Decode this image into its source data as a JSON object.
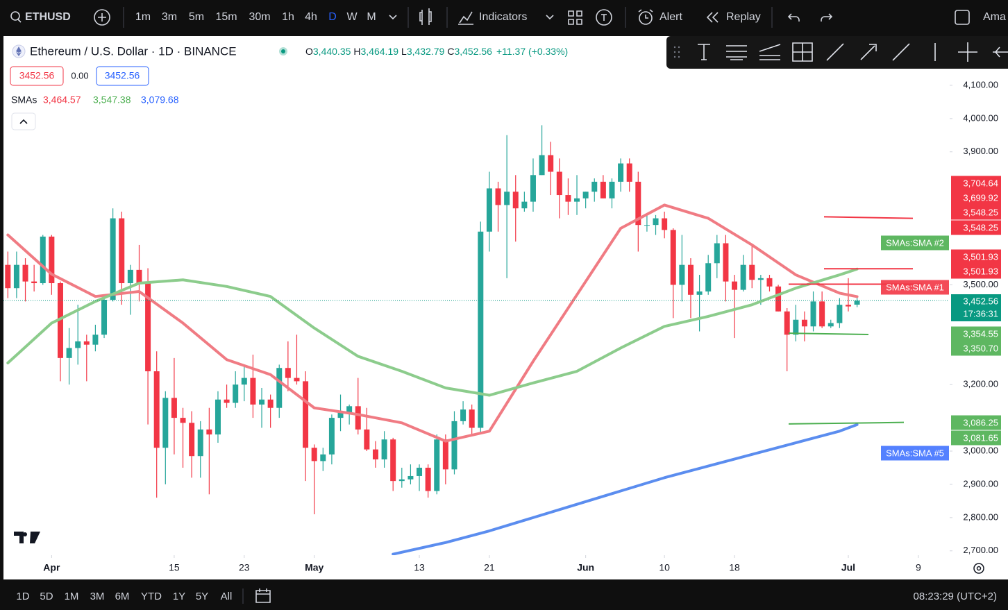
{
  "toolbar": {
    "symbol": "ETHUSD",
    "intervals": [
      "1m",
      "3m",
      "5m",
      "15m",
      "30m",
      "1h",
      "4h",
      "D",
      "W",
      "M"
    ],
    "active_interval": 7,
    "indicators": "Indicators",
    "alert": "Alert",
    "replay": "Replay",
    "account": "Ama"
  },
  "legend": {
    "title": "Ethereum / U.S. Dollar · 1D · BINANCE",
    "ohlc": [
      {
        "key": "O",
        "value": "3,440.35"
      },
      {
        "key": "H",
        "value": "3,464.19"
      },
      {
        "key": "L",
        "value": "3,432.79"
      },
      {
        "key": "C",
        "value": "3,452.56"
      }
    ],
    "change": "+11.37 (+0.33%)",
    "bid": "3452.56",
    "spread": "0.00",
    "ask": "3452.56",
    "sma_label": "SMAs",
    "sma_values": [
      "3,464.57",
      "3,547.38",
      "3,079.68"
    ]
  },
  "chart_data": {
    "type": "candlestick",
    "up_color": "#26a69a",
    "down_color": "#f23645",
    "xlim": [
      -0.5,
      107.5
    ],
    "xticks": [
      {
        "value": 5,
        "label": "Apr"
      },
      {
        "value": 19,
        "label": "15"
      },
      {
        "value": 27,
        "label": "23"
      },
      {
        "value": 35,
        "label": "May"
      },
      {
        "value": 47,
        "label": "13"
      },
      {
        "value": 55,
        "label": "21"
      },
      {
        "value": 66,
        "label": "Jun"
      },
      {
        "value": 75,
        "label": "10"
      },
      {
        "value": 83,
        "label": "18"
      },
      {
        "value": 96,
        "label": "Jul"
      },
      {
        "value": 104,
        "label": "9"
      }
    ],
    "ylim": [
      2687,
      4248
    ],
    "yticks": [
      {
        "value": 4100,
        "label": "4,100.00"
      },
      {
        "value": 4000,
        "label": "4,000.00"
      },
      {
        "value": 3900,
        "label": "3,900.00"
      },
      {
        "value": 3500,
        "label": "3,500.00"
      },
      {
        "value": 3200,
        "label": "3,200.00"
      },
      {
        "value": 3000,
        "label": "3,000.00"
      },
      {
        "value": 2900,
        "label": "2,900.00"
      },
      {
        "value": 2800,
        "label": "2,800.00"
      },
      {
        "value": 2700,
        "label": "2,700.00"
      }
    ],
    "candles": [
      [
        3560,
        3600,
        3460,
        3490
      ],
      [
        3490,
        3600,
        3460,
        3560
      ],
      [
        3560,
        3580,
        3450,
        3510
      ],
      [
        3510,
        3560,
        3480,
        3505
      ],
      [
        3505,
        3650,
        3500,
        3645
      ],
      [
        3645,
        3650,
        3470,
        3505
      ],
      [
        3505,
        3510,
        3210,
        3280
      ],
      [
        3280,
        3370,
        3200,
        3310
      ],
      [
        3310,
        3440,
        3260,
        3330
      ],
      [
        3330,
        3350,
        3210,
        3320
      ],
      [
        3320,
        3380,
        3300,
        3350
      ],
      [
        3350,
        3460,
        3340,
        3455
      ],
      [
        3455,
        3730,
        3450,
        3700
      ],
      [
        3700,
        3720,
        3440,
        3505
      ],
      [
        3505,
        3560,
        3410,
        3545
      ],
      [
        3545,
        3620,
        3450,
        3505
      ],
      [
        3505,
        3550,
        3080,
        3240
      ],
      [
        3240,
        3300,
        2860,
        3010
      ],
      [
        3010,
        3180,
        2900,
        3160
      ],
      [
        3160,
        3280,
        2990,
        3100
      ],
      [
        3100,
        3130,
        2950,
        3085
      ],
      [
        3085,
        3120,
        2920,
        2985
      ],
      [
        2985,
        3090,
        2920,
        3065
      ],
      [
        3065,
        3130,
        2870,
        3050
      ],
      [
        3050,
        3180,
        3025,
        3155
      ],
      [
        3155,
        3200,
        3130,
        3145
      ],
      [
        3145,
        3240,
        3130,
        3200
      ],
      [
        3200,
        3260,
        3150,
        3220
      ],
      [
        3220,
        3290,
        3100,
        3140
      ],
      [
        3140,
        3190,
        3070,
        3155
      ],
      [
        3155,
        3170,
        3070,
        3130
      ],
      [
        3130,
        3260,
        3100,
        3250
      ],
      [
        3250,
        3330,
        3180,
        3220
      ],
      [
        3220,
        3350,
        3200,
        3210
      ],
      [
        3210,
        3240,
        2910,
        3010
      ],
      [
        3010,
        3020,
        2810,
        2970
      ],
      [
        2970,
        3010,
        2940,
        2990
      ],
      [
        2990,
        3110,
        2960,
        3100
      ],
      [
        3100,
        3170,
        3060,
        3115
      ],
      [
        3115,
        3140,
        3080,
        3135
      ],
      [
        3135,
        3220,
        3050,
        3065
      ],
      [
        3065,
        3130,
        3000,
        3005
      ],
      [
        3005,
        3030,
        2950,
        2975
      ],
      [
        2975,
        3060,
        2950,
        3035
      ],
      [
        3035,
        3040,
        2880,
        2910
      ],
      [
        2910,
        2950,
        2890,
        2915
      ],
      [
        2915,
        2960,
        2900,
        2925
      ],
      [
        2925,
        2960,
        2880,
        2950
      ],
      [
        2950,
        2960,
        2860,
        2880
      ],
      [
        2880,
        3050,
        2870,
        3035
      ],
      [
        3035,
        3050,
        2900,
        2945
      ],
      [
        2945,
        3120,
        2930,
        3090
      ],
      [
        3090,
        3150,
        3080,
        3125
      ],
      [
        3125,
        3140,
        3050,
        3070
      ],
      [
        3070,
        3690,
        3050,
        3660
      ],
      [
        3660,
        3840,
        3600,
        3790
      ],
      [
        3790,
        3810,
        3660,
        3740
      ],
      [
        3740,
        3950,
        3520,
        3780
      ],
      [
        3780,
        3830,
        3630,
        3730
      ],
      [
        3730,
        3780,
        3720,
        3750
      ],
      [
        3750,
        3880,
        3720,
        3830
      ],
      [
        3830,
        3980,
        3830,
        3890
      ],
      [
        3890,
        3930,
        3770,
        3840
      ],
      [
        3840,
        3880,
        3700,
        3770
      ],
      [
        3770,
        3820,
        3710,
        3750
      ],
      [
        3750,
        3830,
        3710,
        3760
      ],
      [
        3760,
        3780,
        3730,
        3780
      ],
      [
        3780,
        3820,
        3750,
        3810
      ],
      [
        3810,
        3830,
        3760,
        3760
      ],
      [
        3760,
        3820,
        3730,
        3810
      ],
      [
        3810,
        3880,
        3780,
        3865
      ],
      [
        3865,
        3880,
        3780,
        3810
      ],
      [
        3810,
        3840,
        3600,
        3680
      ],
      [
        3680,
        3710,
        3660,
        3680
      ],
      [
        3680,
        3710,
        3650,
        3700
      ],
      [
        3700,
        3720,
        3640,
        3665
      ],
      [
        3665,
        3670,
        3400,
        3500
      ],
      [
        3500,
        3650,
        3450,
        3560
      ],
      [
        3560,
        3580,
        3400,
        3470
      ],
      [
        3470,
        3530,
        3360,
        3480
      ],
      [
        3480,
        3590,
        3470,
        3565
      ],
      [
        3565,
        3650,
        3520,
        3625
      ],
      [
        3625,
        3650,
        3450,
        3510
      ],
      [
        3510,
        3530,
        3340,
        3485
      ],
      [
        3485,
        3590,
        3480,
        3560
      ],
      [
        3560,
        3620,
        3490,
        3515
      ],
      [
        3515,
        3530,
        3440,
        3520
      ],
      [
        3520,
        3530,
        3480,
        3495
      ],
      [
        3495,
        3500,
        3420,
        3420
      ],
      [
        3420,
        3430,
        3240,
        3350
      ],
      [
        3350,
        3440,
        3330,
        3395
      ],
      [
        3395,
        3420,
        3330,
        3375
      ],
      [
        3375,
        3480,
        3360,
        3450
      ],
      [
        3450,
        3480,
        3370,
        3375
      ],
      [
        3375,
        3395,
        3370,
        3385
      ],
      [
        3385,
        3460,
        3370,
        3440
      ],
      [
        3440,
        3520,
        3420,
        3435
      ],
      [
        3440.35,
        3464.19,
        3432.79,
        3452.56
      ]
    ],
    "series": [
      {
        "name": "SMAs:SMA #1",
        "color": "#f07b83",
        "x": [
          0,
          5,
          10,
          15,
          20,
          25,
          30,
          35,
          40,
          45,
          50,
          55,
          60,
          65,
          70,
          75,
          80,
          85,
          90,
          95,
          97
        ],
        "values": [
          3650,
          3532,
          3465,
          3480,
          3385,
          3275,
          3230,
          3130,
          3110,
          3085,
          3030,
          3060,
          3270,
          3470,
          3670,
          3740,
          3700,
          3620,
          3530,
          3475,
          3464.57
        ]
      },
      {
        "name": "SMAs:SMA #2",
        "color": "#8ccc8c",
        "x": [
          0,
          5,
          10,
          15,
          20,
          25,
          30,
          35,
          40,
          45,
          50,
          55,
          60,
          65,
          70,
          75,
          80,
          85,
          90,
          95,
          97
        ],
        "values": [
          3265,
          3385,
          3450,
          3505,
          3515,
          3495,
          3465,
          3370,
          3285,
          3240,
          3190,
          3168,
          3205,
          3240,
          3310,
          3375,
          3405,
          3440,
          3490,
          3530,
          3547.38
        ]
      },
      {
        "name": "SMAs:SMA #5",
        "color": "#5b8def",
        "x": [
          44,
          50,
          55,
          60,
          65,
          70,
          75,
          80,
          85,
          90,
          95,
          97
        ],
        "values": [
          2690,
          2725,
          2760,
          2800,
          2840,
          2880,
          2920,
          2955,
          2990,
          3025,
          3060,
          3079.68
        ]
      }
    ],
    "drawings": [
      {
        "color": "#f23645",
        "start": 3704.64,
        "end": 3699.92,
        "start_label": "3,704.64",
        "end_label": "3,699.92"
      },
      {
        "color": "#f23645",
        "start": 3548.25,
        "end": 3548.25,
        "start_label": "3,548.25",
        "end_label": "3,548.25"
      },
      {
        "color": "#f23645",
        "start": 3501.93,
        "end": 3501.93,
        "start_label": "3,501.93",
        "end_label": "3,501.93"
      },
      {
        "color": "#4caf50",
        "start": 3354.55,
        "end": 3350.7,
        "start_label": "3,354.55",
        "end_label": "3,350.70"
      },
      {
        "color": "#4caf50",
        "start": 3081.65,
        "end": 3086.25,
        "start_label": "3,081.65",
        "end_label": "3,086.25"
      }
    ],
    "last_price": {
      "value": 3452.56,
      "label": "3,452.56",
      "countdown": "17:36:31"
    }
  },
  "footer": {
    "ranges": [
      "1D",
      "5D",
      "1M",
      "3M",
      "6M",
      "YTD",
      "1Y",
      "5Y",
      "All"
    ],
    "clock": "08:23:29 (UTC+2)"
  }
}
